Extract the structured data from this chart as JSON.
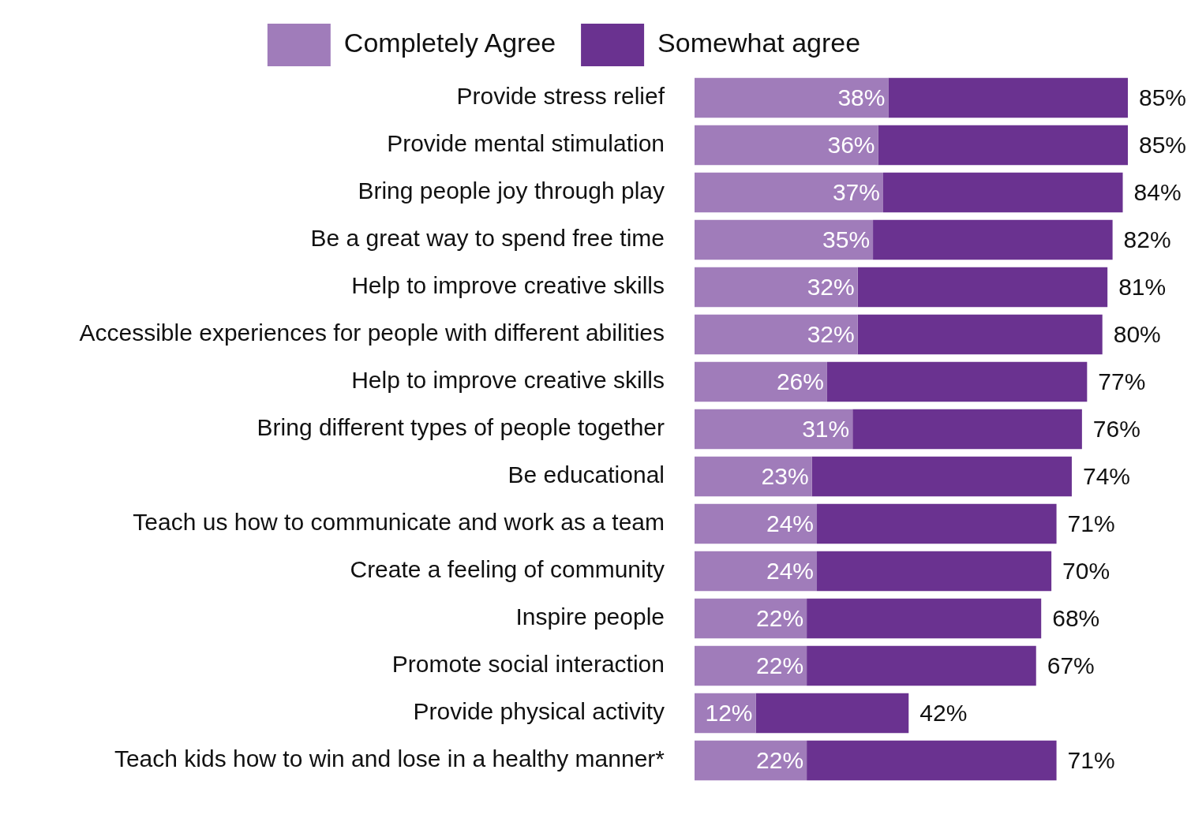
{
  "chart_data": {
    "type": "bar",
    "orientation": "horizontal",
    "stacked": true,
    "legend": "top",
    "tick_labels": "y",
    "grid": false,
    "xlim": [
      0,
      85
    ],
    "categories": [
      "Provide stress relief",
      "Provide mental stimulation",
      "Bring people joy through play",
      "Be a great way to spend free time",
      "Help to improve creative skills",
      "Accessible experiences for people with different abilities",
      "Help to improve creative skills",
      "Bring different types of people together",
      "Be educational",
      "Teach us how to communicate and work as a team",
      "Create a feeling of community",
      "Inspire people",
      "Promote social interaction",
      "Provide physical activity",
      "Teach kids how to win and lose in a healthy manner*"
    ],
    "series": [
      {
        "name": "Completely Agree",
        "color": "#a07cba",
        "values": [
          38,
          36,
          37,
          35,
          32,
          32,
          26,
          31,
          23,
          24,
          24,
          22,
          22,
          12,
          22
        ],
        "value_labels": [
          "38%",
          "36%",
          "37%",
          "35%",
          "32%",
          "32%",
          "26%",
          "31%",
          "23%",
          "24%",
          "24%",
          "22%",
          "22%",
          "12%",
          "22%"
        ]
      },
      {
        "name": "Somewhat agree",
        "color": "#6a3290",
        "values": [
          47,
          49,
          47,
          47,
          49,
          48,
          51,
          45,
          51,
          47,
          46,
          46,
          45,
          30,
          49
        ]
      }
    ],
    "totals": [
      "85%",
      "85%",
      "84%",
      "82%",
      "81%",
      "80%",
      "77%",
      "76%",
      "74%",
      "71%",
      "70%",
      "68%",
      "67%",
      "42%",
      "71%"
    ]
  }
}
